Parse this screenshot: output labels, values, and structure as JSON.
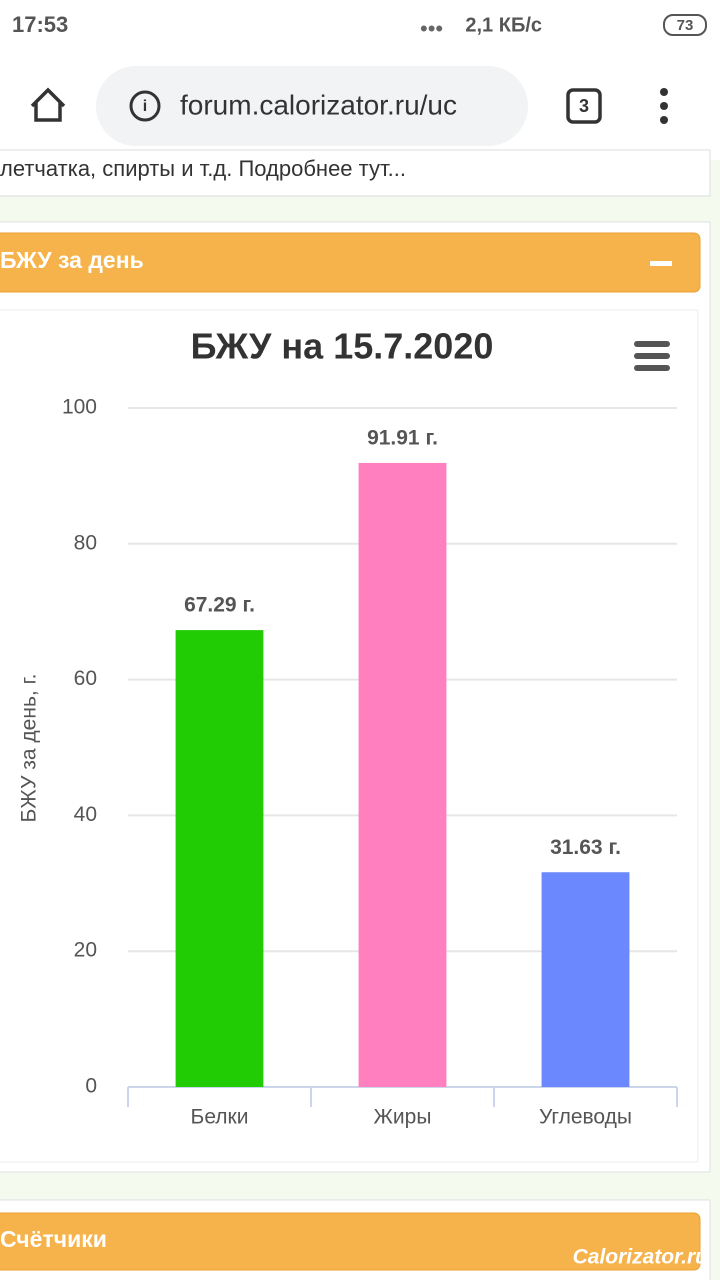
{
  "status_bar": {
    "time": "17:53",
    "network": "2,1 КБ/с",
    "battery": "73"
  },
  "browser": {
    "url": "forum.calorizator.ru/uc",
    "tabs": "3"
  },
  "page": {
    "truncated_text": "летчатка, спирты и т.д. Подробнее тут...",
    "panel_title": "БЖУ за день",
    "panel2_title": "Счётчики",
    "watermark": "Calorizator.ru"
  },
  "chart_data": {
    "type": "bar",
    "title": "БЖУ на 15.7.2020",
    "y_label": "БЖУ за день, г.",
    "categories": [
      "Белки",
      "Жиры",
      "Углеводы"
    ],
    "values": [
      67.29,
      91.91,
      31.63
    ],
    "value_labels": [
      "67.29 г.",
      "91.91 г.",
      "31.63 г."
    ],
    "colors": [
      "#22cc05",
      "#ff7fbf",
      "#6b88ff"
    ],
    "ylim": [
      0,
      100
    ],
    "yticks": [
      0,
      20,
      40,
      60,
      80,
      100
    ],
    "grid": true
  }
}
